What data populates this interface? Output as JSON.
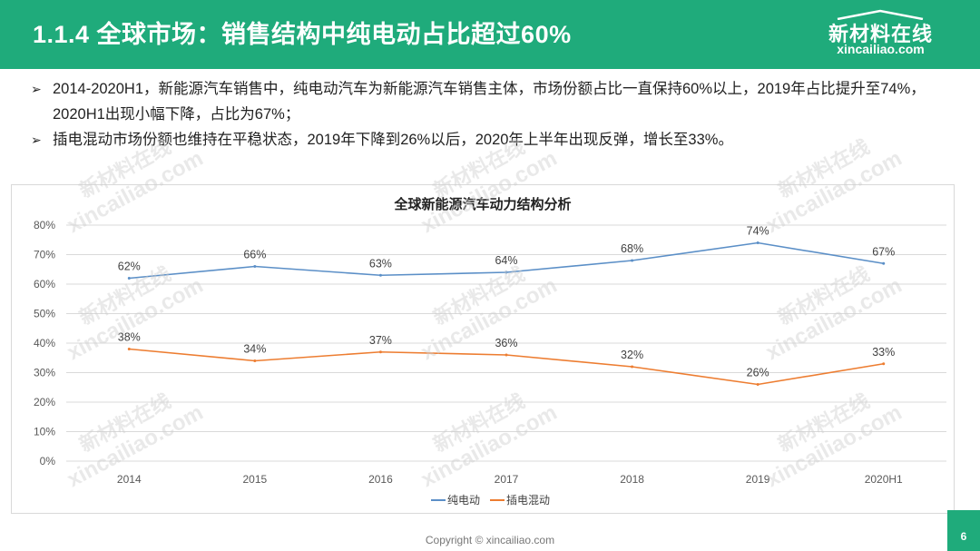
{
  "header": {
    "title": "1.1.4 全球市场：销售结构中纯电动占比超过60%",
    "brand_name": "新材料在线",
    "brand_url": "xincailiao.com"
  },
  "bullets": [
    "2014-2020H1，新能源汽车销售中，纯电动汽车为新能源汽车销售主体，市场份额占比一直保持60%以上，2019年占比提升至74%，2020H1出现小幅下降，占比为67%；",
    "插电混动市场份额也维持在平稳状态，2019年下降到26%以后，2020年上半年出现反弹，增长至33%。"
  ],
  "colors": {
    "header": "#1fab7b",
    "bev_line": "#5b8fc7",
    "phev_line": "#ed7d31",
    "grid": "#d9d9d9"
  },
  "chart_data": {
    "type": "line",
    "title": "全球新能源汽车动力结构分析",
    "categories": [
      "2014",
      "2015",
      "2016",
      "2017",
      "2018",
      "2019",
      "2020H1"
    ],
    "series": [
      {
        "name": "纯电动",
        "values": [
          62,
          66,
          63,
          64,
          68,
          74,
          67
        ],
        "color": "#5b8fc7"
      },
      {
        "name": "插电混动",
        "values": [
          38,
          34,
          37,
          36,
          32,
          26,
          33
        ],
        "color": "#ed7d31"
      }
    ],
    "ylim": [
      0,
      80
    ],
    "yticks": [
      "0%",
      "10%",
      "20%",
      "30%",
      "40%",
      "50%",
      "60%",
      "70%",
      "80%"
    ],
    "data_label_suffix": "%",
    "grid": true,
    "legend": "bottom"
  },
  "footer": "Copyright © xincailiao.com",
  "page_number": "6",
  "watermark": {
    "line1": "新材料在线",
    "line2": "xincailiao.com"
  }
}
